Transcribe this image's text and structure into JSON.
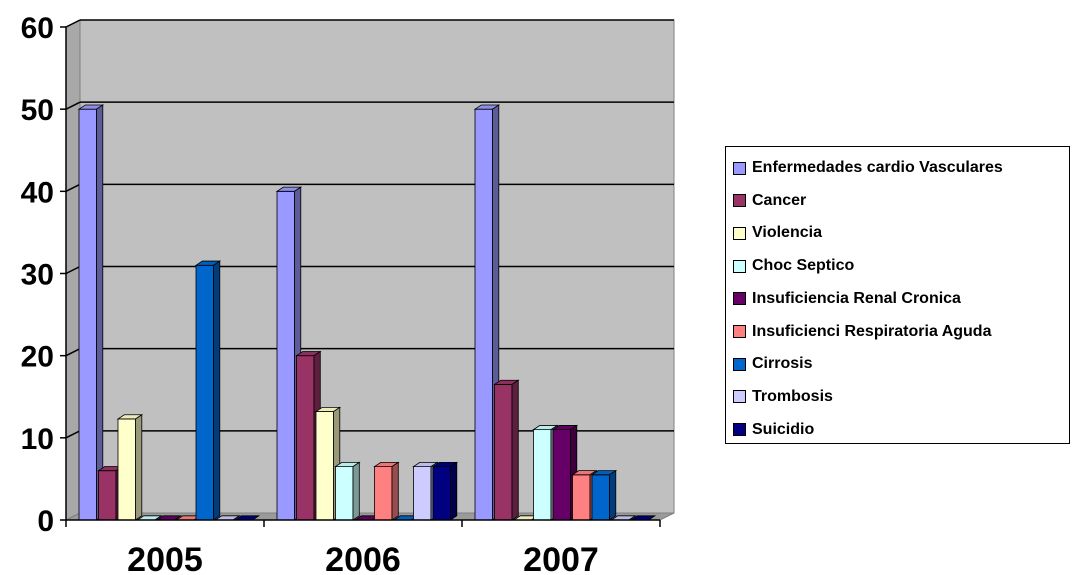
{
  "chart_data": {
    "type": "bar",
    "categories": [
      "2005",
      "2006",
      "2007"
    ],
    "ylim": [
      0,
      60
    ],
    "yticks": [
      0,
      10,
      20,
      30,
      40,
      50,
      60
    ],
    "grid": true,
    "legend_position": "right",
    "series": [
      {
        "name": "Enfermedades cardio Vasculares",
        "color": "#9999FF",
        "values": [
          50,
          40,
          50
        ]
      },
      {
        "name": "Cancer",
        "color": "#993366",
        "values": [
          6,
          20,
          16.5
        ]
      },
      {
        "name": "Violencia",
        "color": "#FFFFCC",
        "values": [
          12.3,
          13.2,
          0
        ]
      },
      {
        "name": "Choc Septico",
        "color": "#CCFFFF",
        "values": [
          0,
          6.5,
          11
        ]
      },
      {
        "name": "Insuficiencia Renal Cronica",
        "color": "#660066",
        "values": [
          0,
          0,
          11
        ]
      },
      {
        "name": "Insuficienci Respiratoria Aguda",
        "color": "#FF8080",
        "values": [
          0,
          6.5,
          5.5
        ]
      },
      {
        "name": "Cirrosis",
        "color": "#0066CC",
        "values": [
          31,
          0,
          5.5
        ]
      },
      {
        "name": "Trombosis",
        "color": "#CCCCFF",
        "values": [
          0,
          6.5,
          0
        ]
      },
      {
        "name": "Suicidio",
        "color": "#000080",
        "values": [
          0,
          6.5,
          0
        ]
      }
    ]
  }
}
